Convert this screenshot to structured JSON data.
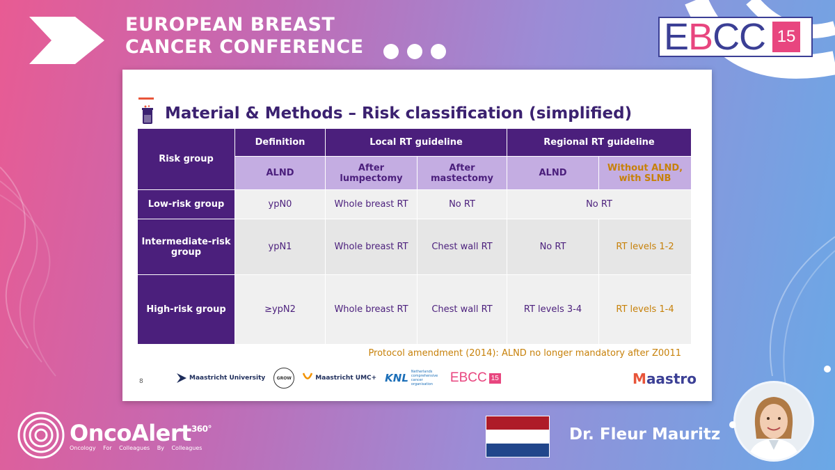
{
  "header": {
    "title_line1": "EUROPEAN BREAST",
    "title_line2": "CANCER CONFERENCE",
    "logo_letter_e": "E",
    "logo_letter_b": "B",
    "logo_letters_cc": "CC",
    "logo_number": "15"
  },
  "slide": {
    "title": "Material & Methods – Risk classification (simplified)",
    "table": {
      "col_risk_group": "Risk group",
      "col_definition": "Definition",
      "col_local": "Local RT guideline",
      "col_regional": "Regional RT guideline",
      "sub_alnd": "ALND",
      "sub_after_lumpectomy": "After lumpectomy",
      "sub_after_mastectomy": "After mastectomy",
      "sub_regional_alnd": "ALND",
      "sub_without_alnd_1": "Without ALND,",
      "sub_without_alnd_2": "with SLNB",
      "rows": [
        {
          "group": "Low-risk group",
          "definition": "ypN0",
          "lumpectomy": "Whole breast RT",
          "mastectomy": "No RT",
          "regional_merged": "No RT"
        },
        {
          "group_1": "Intermediate-risk",
          "group_2": "group",
          "definition": "ypN1",
          "lumpectomy": "Whole breast RT",
          "mastectomy": "Chest wall RT",
          "regional_alnd": "No RT",
          "regional_slnb": "RT levels 1-2"
        },
        {
          "group": "High-risk group",
          "definition": "≥ypN2",
          "lumpectomy": "Whole breast RT",
          "mastectomy": "Chest wall RT",
          "regional_alnd": "RT levels 3-4",
          "regional_slnb": "RT levels 1-4"
        }
      ]
    },
    "amendment": "Protocol amendment (2014): ALND no longer mandatory after Z0011",
    "page_number": "8",
    "footer": {
      "maastricht_university": "Maastricht University",
      "grow": "GROW",
      "mumc": "Maastricht UMC+",
      "knl": "KNL",
      "knl_small": "Netherlands comprehensive cancer organisation",
      "ebcc": "EBCC",
      "ebcc_num": "15",
      "maastro_m": "M",
      "maastro_rest": "aastro"
    }
  },
  "branding": {
    "name": "OncoAlert",
    "superscript": "360°",
    "tagline": "Oncology   For Colleagues   By Colleagues"
  },
  "speaker": {
    "name": "Dr. Fleur Mauritz",
    "flag_colors": [
      "#ae1c28",
      "#ffffff",
      "#21468b"
    ]
  }
}
